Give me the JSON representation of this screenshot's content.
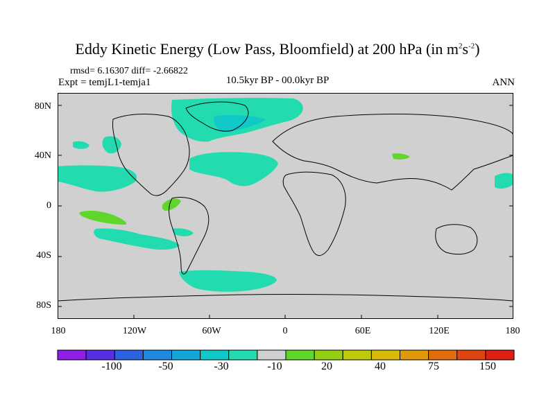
{
  "title_main": "Eddy Kinetic Energy (Low Pass, Bloomfield) at 200 hPa (in m",
  "title_sup1": "2",
  "title_mid": "s",
  "title_sup2": "-2",
  "title_end": ")",
  "stats": "rmsd= 6.16307 diff= -2.66822",
  "expt": "Expt = temjL1-temja1",
  "period": "10.5kyr BP - 00.0kyr BP",
  "season": "ANN",
  "lat_labels": [
    "80N",
    "40N",
    "0",
    "40S",
    "80S"
  ],
  "lon_labels": [
    "180",
    "120W",
    "60W",
    "0",
    "60E",
    "120E",
    "180"
  ],
  "colorbar": {
    "colors": [
      "#8e1ee8",
      "#5a2ee4",
      "#2d63e1",
      "#1f8ae0",
      "#12a9d8",
      "#10c8c8",
      "#22dcb0",
      "#d0d0d0",
      "#5fd62a",
      "#93cf12",
      "#bcca0a",
      "#d8bb08",
      "#e09a08",
      "#e06c0a",
      "#e04410",
      "#dd2010"
    ],
    "labels": [
      "-100",
      "-50",
      "-30",
      "-10",
      "20",
      "40",
      "75",
      "150"
    ]
  },
  "colors": {
    "land_ocean_zero": "#d0d0d0",
    "negative_small": "#22dcb0",
    "negative_medium": "#10c8c8",
    "positive_small": "#5fd62a"
  }
}
